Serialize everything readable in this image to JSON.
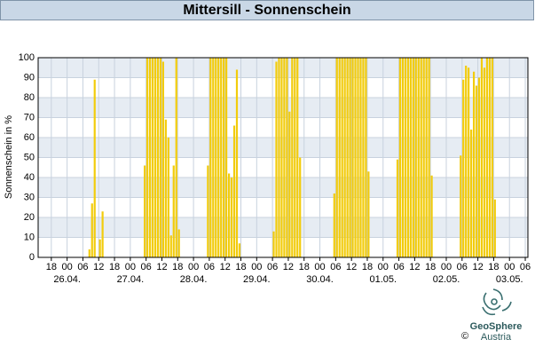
{
  "chart_data": {
    "type": "bar",
    "title": "Mittersill - Sonnenschein",
    "y_label": "Sonnenschein in %",
    "color": "#f2cc0c",
    "logo": {
      "name": "GeoSphere",
      "sub": "Austria",
      "copyright": "©"
    },
    "ylim": [
      0,
      100
    ],
    "yticks": [
      0,
      10,
      20,
      30,
      40,
      50,
      60,
      70,
      80,
      90,
      100
    ],
    "grid": true,
    "xlim": [
      "25.04. 13",
      "03.05. 07"
    ],
    "xticks": [
      {
        "value": "25.04. 18",
        "label": "18"
      },
      {
        "value": "26.04. 00",
        "label": "00"
      },
      {
        "value": "26.04. 06",
        "label": "06"
      },
      {
        "value": "26.04. 12",
        "label": "12"
      },
      {
        "value": "26.04. 18",
        "label": "18"
      },
      {
        "value": "27.04. 00",
        "label": "00"
      },
      {
        "value": "27.04. 06",
        "label": "06"
      },
      {
        "value": "27.04. 12",
        "label": "12"
      },
      {
        "value": "27.04. 18",
        "label": "18"
      },
      {
        "value": "28.04. 00",
        "label": "00"
      },
      {
        "value": "28.04. 06",
        "label": "06"
      },
      {
        "value": "28.04. 12",
        "label": "12"
      },
      {
        "value": "28.04. 18",
        "label": "18"
      },
      {
        "value": "29.04. 00",
        "label": "00"
      },
      {
        "value": "29.04. 06",
        "label": "06"
      },
      {
        "value": "29.04. 12",
        "label": "12"
      },
      {
        "value": "29.04. 18",
        "label": "18"
      },
      {
        "value": "30.04. 00",
        "label": "00"
      },
      {
        "value": "30.04. 06",
        "label": "06"
      },
      {
        "value": "30.04. 12",
        "label": "12"
      },
      {
        "value": "30.04. 18",
        "label": "18"
      },
      {
        "value": "01.05. 00",
        "label": "00"
      },
      {
        "value": "01.05. 06",
        "label": "06"
      },
      {
        "value": "01.05. 12",
        "label": "12"
      },
      {
        "value": "01.05. 18",
        "label": "18"
      },
      {
        "value": "02.05. 00",
        "label": "00"
      },
      {
        "value": "02.05. 06",
        "label": "06"
      },
      {
        "value": "02.05. 12",
        "label": "12"
      },
      {
        "value": "02.05. 18",
        "label": "18"
      },
      {
        "value": "03.05. 00",
        "label": "00"
      },
      {
        "value": "03.05. 06",
        "label": "06"
      }
    ],
    "date_ticks": [
      {
        "value": "26.04. 00",
        "label": "26.04."
      },
      {
        "value": "27.04. 00",
        "label": "27.04."
      },
      {
        "value": "28.04. 00",
        "label": "28.04."
      },
      {
        "value": "29.04. 00",
        "label": "29.04."
      },
      {
        "value": "30.04. 00",
        "label": "30.04."
      },
      {
        "value": "01.05. 00",
        "label": "01.05."
      },
      {
        "value": "02.05. 00",
        "label": "02.05."
      },
      {
        "value": "03.05. 00",
        "label": "03.05."
      }
    ],
    "x": [
      "26.04. 08",
      "26.04. 09",
      "26.04. 10",
      "26.04. 12",
      "26.04. 13",
      "27.04. 05",
      "27.04. 06",
      "27.04. 07",
      "27.04. 08",
      "27.04. 09",
      "27.04. 10",
      "27.04. 11",
      "27.04. 12",
      "27.04. 13",
      "27.04. 14",
      "27.04. 15",
      "27.04. 16",
      "27.04. 17",
      "27.04. 18",
      "28.04. 05",
      "28.04. 06",
      "28.04. 07",
      "28.04. 08",
      "28.04. 09",
      "28.04. 10",
      "28.04. 11",
      "28.04. 12",
      "28.04. 13",
      "28.04. 14",
      "28.04. 15",
      "28.04. 16",
      "28.04. 17",
      "29.04. 06",
      "29.04. 07",
      "29.04. 08",
      "29.04. 09",
      "29.04. 10",
      "29.04. 11",
      "29.04. 12",
      "29.04. 13",
      "29.04. 14",
      "29.04. 15",
      "29.04. 16",
      "30.04. 05",
      "30.04. 06",
      "30.04. 07",
      "30.04. 08",
      "30.04. 09",
      "30.04. 10",
      "30.04. 11",
      "30.04. 12",
      "30.04. 13",
      "30.04. 14",
      "30.04. 15",
      "30.04. 16",
      "30.04. 17",
      "30.04. 18",
      "01.05. 05",
      "01.05. 06",
      "01.05. 07",
      "01.05. 08",
      "01.05. 09",
      "01.05. 10",
      "01.05. 11",
      "01.05. 12",
      "01.05. 13",
      "01.05. 14",
      "01.05. 15",
      "01.05. 16",
      "01.05. 17",
      "01.05. 18",
      "02.05. 05",
      "02.05. 06",
      "02.05. 07",
      "02.05. 08",
      "02.05. 09",
      "02.05. 10",
      "02.05. 11",
      "02.05. 12",
      "02.05. 13",
      "02.05. 14",
      "02.05. 15",
      "02.05. 16",
      "02.05. 17",
      "02.05. 18"
    ],
    "values": [
      4,
      27,
      89,
      9,
      23,
      46,
      100,
      100,
      100,
      100,
      100,
      100,
      98,
      69,
      60,
      11,
      46,
      100,
      14,
      46,
      100,
      100,
      100,
      100,
      100,
      100,
      100,
      42,
      40,
      66,
      94,
      7,
      13,
      98,
      100,
      100,
      100,
      100,
      73,
      100,
      100,
      100,
      50,
      32,
      100,
      100,
      100,
      100,
      100,
      100,
      100,
      100,
      100,
      100,
      100,
      100,
      43,
      49,
      100,
      100,
      100,
      100,
      100,
      100,
      100,
      100,
      100,
      100,
      100,
      100,
      41,
      51,
      89,
      96,
      95,
      64,
      93,
      86,
      90,
      100,
      95,
      100,
      100,
      100,
      29
    ]
  }
}
